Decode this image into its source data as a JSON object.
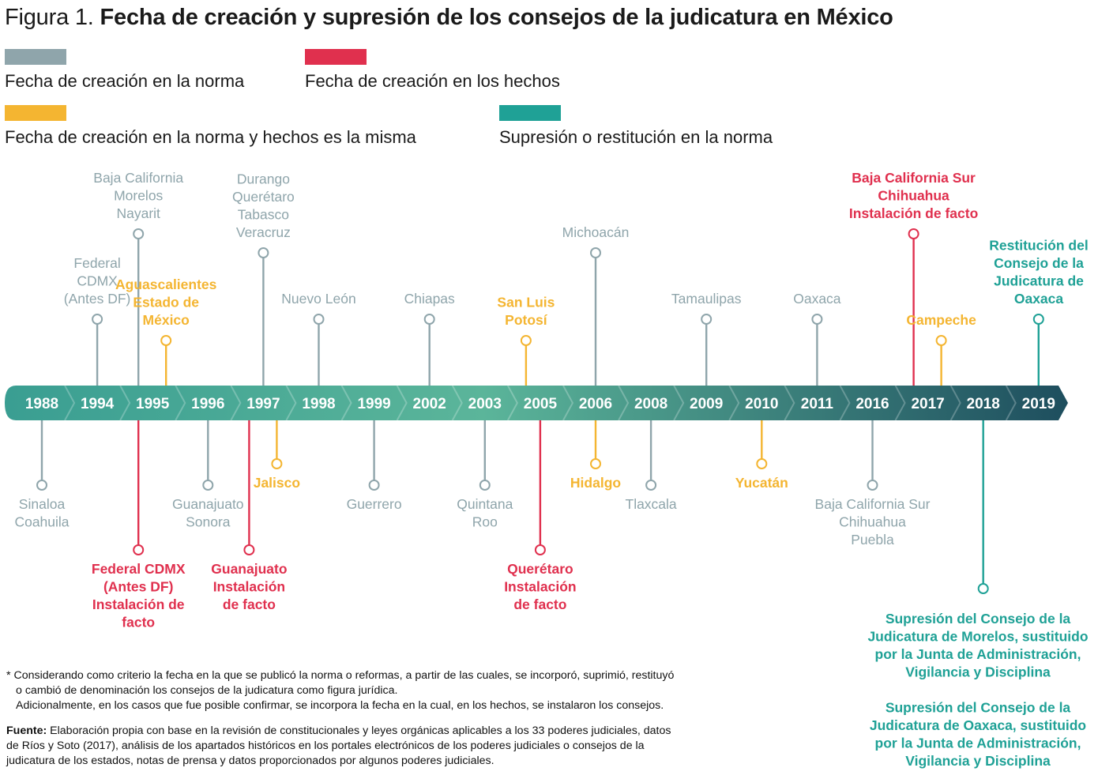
{
  "title": {
    "lead": "Figura 1.",
    "main": "Fecha de creación y supresión de los consejos de la judicatura en México"
  },
  "legend": [
    {
      "label": "Fecha de creación en la norma",
      "color": "#8FA5AB"
    },
    {
      "label": "Fecha de creación en los hechos",
      "color": "#E0304E"
    },
    {
      "label": "Fecha de creación en la norma y hechos es la misma",
      "color": "#F4B531"
    },
    {
      "label": "Supresión o restitución en la norma",
      "color": "#1FA196"
    }
  ],
  "colors": {
    "norma": "#8FA5AB",
    "hechos": "#E0304E",
    "misma": "#F4B531",
    "supresion": "#1FA196",
    "arrow_start": "#3A9E92",
    "arrow_mid": "#5BB59A",
    "arrow_end": "#1E4E5E"
  },
  "years": [
    "1988",
    "1994",
    "1995",
    "1996",
    "1997",
    "1998",
    "1999",
    "2002",
    "2003",
    "2005",
    "2006",
    "2008",
    "2009",
    "2010",
    "2011",
    "2016",
    "2017",
    "2018",
    "2019"
  ],
  "events": [
    {
      "year": "1988",
      "side": "below",
      "cat": "norma",
      "depth": "short",
      "lines": [
        "Sinaloa",
        "Coahuila"
      ]
    },
    {
      "year": "1994",
      "side": "above",
      "cat": "norma",
      "depth": "medium",
      "lines": [
        "Federal",
        "CDMX",
        "(Antes DF)"
      ]
    },
    {
      "year": "1995",
      "side": "above",
      "cat": "norma",
      "depth": "tall",
      "lines": [
        "Baja California",
        "Morelos",
        "Nayarit"
      ],
      "offset": "left"
    },
    {
      "year": "1995",
      "side": "above",
      "cat": "misma",
      "depth": "short",
      "lines": [
        "Aguascalientes",
        "Estado de",
        "México"
      ],
      "offset": "right"
    },
    {
      "year": "1995",
      "side": "below",
      "cat": "hechos",
      "depth": "long",
      "lines": [
        "Federal CDMX",
        "(Antes DF)",
        "Instalación de",
        "facto"
      ],
      "offset": "left"
    },
    {
      "year": "1996",
      "side": "below",
      "cat": "norma",
      "depth": "short",
      "lines": [
        "Guanajuato",
        "Sonora"
      ]
    },
    {
      "year": "1997",
      "side": "above",
      "cat": "norma",
      "depth": "tall2",
      "lines": [
        "Durango",
        "Querétaro",
        "Tabasco",
        "Veracruz"
      ]
    },
    {
      "year": "1997",
      "side": "below",
      "cat": "hechos",
      "depth": "long",
      "lines": [
        "Guanajuato",
        "Instalación",
        "de facto"
      ],
      "offset": "left"
    },
    {
      "year": "1997",
      "side": "below",
      "cat": "misma",
      "depth": "mini",
      "lines": [
        "Jalisco"
      ],
      "offset": "right"
    },
    {
      "year": "1998",
      "side": "above",
      "cat": "norma",
      "depth": "medium",
      "lines": [
        "Nuevo León"
      ]
    },
    {
      "year": "1999",
      "side": "below",
      "cat": "norma",
      "depth": "short",
      "lines": [
        "Guerrero"
      ]
    },
    {
      "year": "2002",
      "side": "above",
      "cat": "norma",
      "depth": "medium",
      "lines": [
        "Chiapas"
      ]
    },
    {
      "year": "2003",
      "side": "below",
      "cat": "norma",
      "depth": "short",
      "lines": [
        "Quintana",
        "Roo"
      ]
    },
    {
      "year": "2005",
      "side": "above",
      "cat": "misma",
      "depth": "short",
      "lines": [
        "San Luis",
        "Potosí"
      ],
      "offset": "left"
    },
    {
      "year": "2005",
      "side": "below",
      "cat": "hechos",
      "depth": "long",
      "lines": [
        "Querétaro",
        "Instalación",
        "de facto"
      ]
    },
    {
      "year": "2006",
      "side": "above",
      "cat": "norma",
      "depth": "tall2",
      "lines": [
        "Michoacán"
      ]
    },
    {
      "year": "2006",
      "side": "below",
      "cat": "misma",
      "depth": "mini",
      "lines": [
        "Hidalgo"
      ]
    },
    {
      "year": "2008",
      "side": "below",
      "cat": "norma",
      "depth": "short",
      "lines": [
        "Tlaxcala"
      ]
    },
    {
      "year": "2009",
      "side": "above",
      "cat": "norma",
      "depth": "medium",
      "lines": [
        "Tamaulipas"
      ]
    },
    {
      "year": "2010",
      "side": "below",
      "cat": "misma",
      "depth": "mini",
      "lines": [
        "Yucatán"
      ]
    },
    {
      "year": "2011",
      "side": "above",
      "cat": "norma",
      "depth": "medium",
      "lines": [
        "Oaxaca"
      ]
    },
    {
      "year": "2016",
      "side": "below",
      "cat": "norma",
      "depth": "short",
      "lines": [
        "Baja California Sur",
        "Chihuahua",
        "Puebla"
      ]
    },
    {
      "year": "2017",
      "side": "above",
      "cat": "hechos",
      "depth": "tall",
      "lines": [
        "Baja California Sur",
        "Chihuahua",
        "Instalación de facto"
      ],
      "offset": "left"
    },
    {
      "year": "2017",
      "side": "above",
      "cat": "misma",
      "depth": "short",
      "lines": [
        "Campeche"
      ],
      "offset": "right"
    },
    {
      "year": "2018",
      "side": "below",
      "cat": "supresion",
      "depth": "deep",
      "lines": [
        "Supresión del Consejo de la",
        "Judicatura de Morelos, sustituido",
        "por la Junta de Administración,",
        "Vigilancia y Disciplina",
        "",
        "Supresión del Consejo de la",
        "Judicatura de Oaxaca, sustituido",
        "por la Junta de Administración,",
        "Vigilancia y Disciplina"
      ]
    },
    {
      "year": "2019",
      "side": "above",
      "cat": "supresion",
      "depth": "medium",
      "lines": [
        "Restitución del",
        "Consejo de la",
        "Judicatura de",
        "Oaxaca"
      ]
    }
  ],
  "notes": {
    "asterisk_line1": "* Considerando como criterio la fecha en la que se publicó la norma o reformas, a partir de las cuales, se incorporó, suprimió, restituyó",
    "asterisk_line2": "o cambió de denominación los consejos de la judicatura como figura jurídica.",
    "asterisk_line3": "Adicionalmente, en los casos que fue posible confirmar, se incorpora la fecha en la cual, en los hechos, se instalaron los consejos.",
    "source_label": "Fuente:",
    "source_line1": " Elaboración propia con base en la revisión de constitucionales y leyes orgánicas aplicables a los 33 poderes judiciales, datos",
    "source_line2": "de Ríos y Soto (2017), análisis de los apartados históricos en los portales electrónicos de los poderes judiciales o consejos de la",
    "source_line3": "judicatura de los estados, notas de prensa y datos proporcionados por algunos poderes judiciales."
  }
}
